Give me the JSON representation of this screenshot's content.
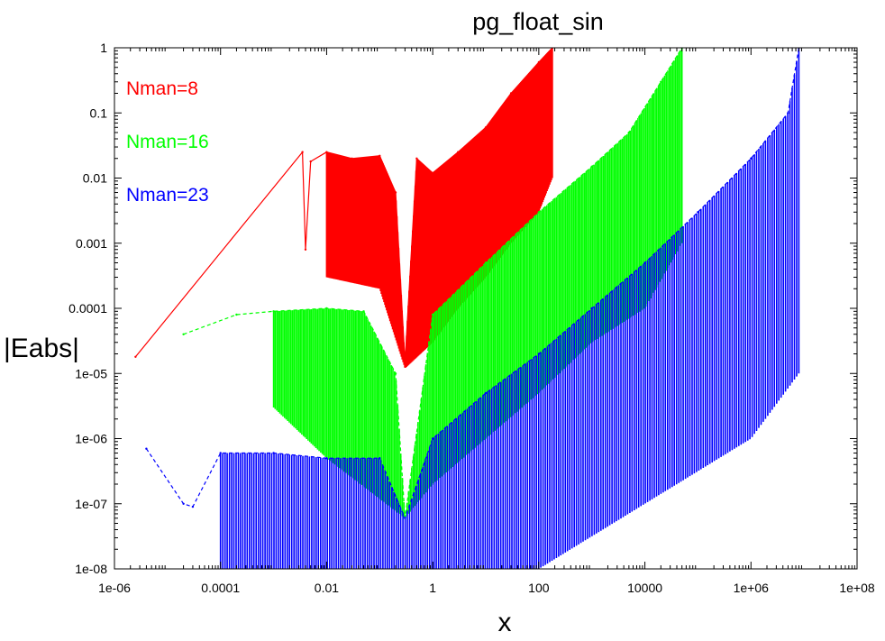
{
  "chart_data": {
    "type": "line",
    "title": "pg_float_sin",
    "xlabel": "x",
    "ylabel": "|Eabs|",
    "xscale": "log",
    "yscale": "log",
    "xlim": [
      1e-06,
      100000000.0
    ],
    "ylim": [
      1e-08,
      1
    ],
    "grid": false,
    "legend_placement": "top-left",
    "x_ticks": [
      "1e-06",
      "0.0001",
      "0.01",
      "1",
      "100",
      "10000",
      "1e+06",
      "1e+08"
    ],
    "y_ticks": [
      "1",
      "0.1",
      "0.01",
      "0.001",
      "0.0001",
      "1e-05",
      "1e-06",
      "1e-07",
      "1e-08"
    ],
    "series": [
      {
        "name": "Nman=8",
        "color": "#ff0000",
        "style": "solid",
        "points": [
          [
            2.5e-06,
            1.8e-05
          ],
          [
            0.0035,
            0.025
          ],
          [
            0.004,
            0.0008
          ],
          [
            0.005,
            0.018
          ],
          [
            0.01,
            0.025
          ],
          [
            0.03,
            0.02
          ],
          [
            0.1,
            0.022
          ],
          [
            0.2,
            0.006
          ],
          [
            0.3,
            1.5e-05
          ],
          [
            0.5,
            0.02
          ],
          [
            1,
            0.012
          ],
          [
            3,
            0.025
          ],
          [
            10,
            0.06
          ],
          [
            30,
            0.2
          ],
          [
            100,
            0.6
          ],
          [
            180,
            1
          ]
        ],
        "envelope_lower": [
          [
            0.01,
            0.0003
          ],
          [
            0.1,
            0.0002
          ],
          [
            0.3,
            1.2e-05
          ],
          [
            1,
            3e-05
          ],
          [
            3,
            0.0001
          ],
          [
            10,
            0.0003
          ],
          [
            30,
            0.001
          ],
          [
            100,
            0.003
          ],
          [
            180,
            0.01
          ]
        ]
      },
      {
        "name": "Nman=16",
        "color": "#00ff00",
        "style": "dashed",
        "points": [
          [
            2e-05,
            4e-05
          ],
          [
            0.0002,
            8e-05
          ],
          [
            0.001,
            9e-05
          ],
          [
            0.01,
            0.0001
          ],
          [
            0.05,
            9e-05
          ],
          [
            0.2,
            1e-05
          ],
          [
            0.3,
            6e-08
          ],
          [
            1,
            8e-05
          ],
          [
            10,
            0.0005
          ],
          [
            100,
            0.003
          ],
          [
            1000,
            0.015
          ],
          [
            5000,
            0.05
          ],
          [
            20000,
            0.3
          ],
          [
            50000,
            1
          ]
        ],
        "envelope_lower": [
          [
            0.001,
            3e-06
          ],
          [
            0.01,
            5e-07
          ],
          [
            0.3,
            6e-08
          ],
          [
            1,
            2e-07
          ],
          [
            10,
            1e-06
          ],
          [
            100,
            5e-06
          ],
          [
            1000,
            3e-05
          ],
          [
            10000,
            0.0001
          ],
          [
            50000,
            0.001
          ]
        ]
      },
      {
        "name": "Nman=23",
        "color": "#0000ff",
        "style": "dashed",
        "points": [
          [
            4e-06,
            7e-07
          ],
          [
            2e-05,
            1e-07
          ],
          [
            3e-05,
            9e-08
          ],
          [
            0.0001,
            6e-07
          ],
          [
            0.001,
            6e-07
          ],
          [
            0.01,
            5e-07
          ],
          [
            0.1,
            5e-07
          ],
          [
            0.3,
            6e-08
          ],
          [
            1,
            1e-06
          ],
          [
            10,
            5e-06
          ],
          [
            100,
            2e-05
          ],
          [
            1000,
            0.0001
          ],
          [
            10000,
            0.0005
          ],
          [
            100000,
            0.003
          ],
          [
            1000000,
            0.02
          ],
          [
            5000000,
            0.1
          ],
          [
            8000000,
            1
          ]
        ],
        "envelope_lower": [
          [
            0.0001,
            1e-08
          ],
          [
            0.01,
            1e-08
          ],
          [
            1,
            1e-08
          ],
          [
            100,
            1e-08
          ],
          [
            10000,
            1e-07
          ],
          [
            1000000,
            1e-06
          ],
          [
            8000000,
            1e-05
          ]
        ]
      }
    ]
  }
}
